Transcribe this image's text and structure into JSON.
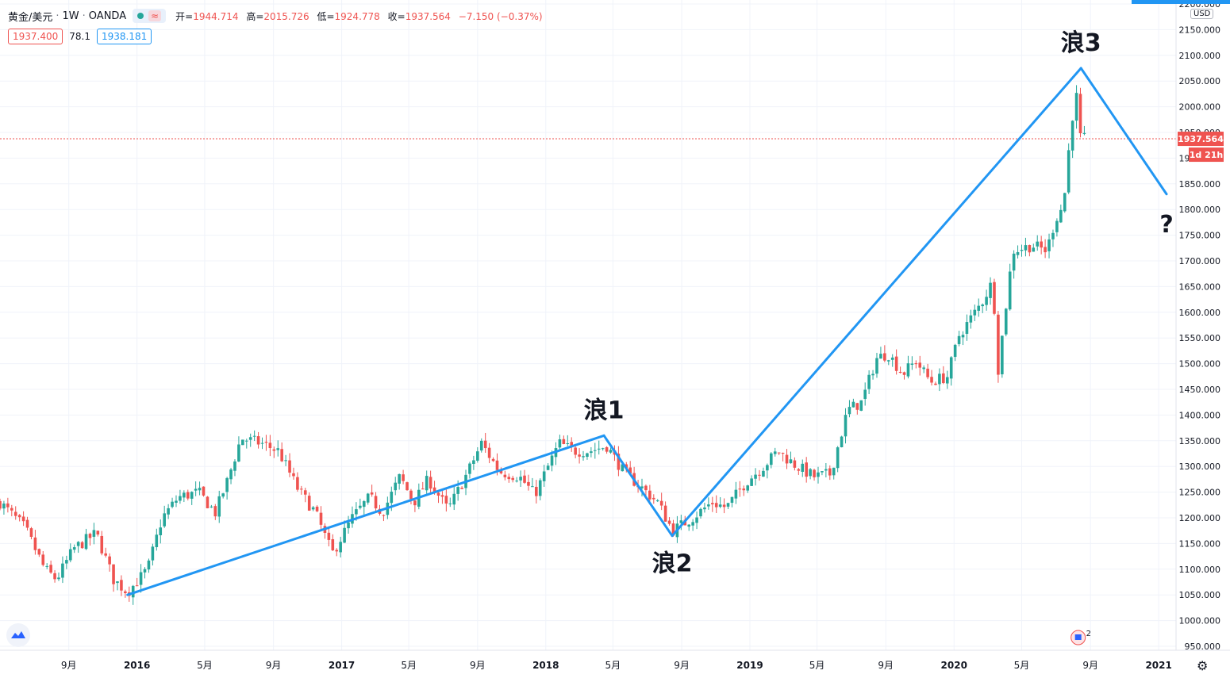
{
  "header": {
    "symbol": "黄金/美元",
    "interval": "1W",
    "exchange": "OANDA",
    "approx_icon": "≈",
    "ohlc": [
      {
        "k": "开=",
        "v": "1944.714"
      },
      {
        "k": "高=",
        "v": "2015.726"
      },
      {
        "k": "低=",
        "v": "1924.778"
      },
      {
        "k": "收=",
        "v": "1937.564"
      },
      {
        "k": "",
        "v": "−7.150 (−0.37%)"
      }
    ],
    "bid": "1937.400",
    "spread": "78.1",
    "ask": "1938.181"
  },
  "colors": {
    "up": "#26a69a",
    "down": "#ef5350",
    "wave": "#2196f3",
    "grid": "#f0f3fa",
    "price_line": "#ef5350"
  },
  "icons": {
    "logo": "tradingview-logo-icon",
    "settings": "gear-icon",
    "news": "news-flag-icon"
  },
  "price_axis": {
    "currency": "USD",
    "labels": [
      "950.000",
      "1000.000",
      "1050.000",
      "1100.000",
      "1150.000",
      "1200.000",
      "1250.000",
      "1300.000",
      "1350.000",
      "1400.000",
      "1450.000",
      "1500.000",
      "1550.000",
      "1600.000",
      "1650.000",
      "1700.000",
      "1750.000",
      "1800.000",
      "1850.000",
      "1900.000",
      "1950.000",
      "2000.000",
      "2050.000",
      "2100.000",
      "2150.000",
      "2200.000"
    ],
    "current_price": "1937.564",
    "countdown": "1d 21h"
  },
  "time_axis": {
    "labels": [
      "9月",
      "2016",
      "5月",
      "9月",
      "2017",
      "5月",
      "9月",
      "2018",
      "5月",
      "9月",
      "2019",
      "5月",
      "9月",
      "2020",
      "5月",
      "9月",
      "2021"
    ]
  },
  "news_badge": "2",
  "chart_data": {
    "type": "candlestick",
    "symbol": "黄金/美元",
    "interval": "1W",
    "y_range": [
      950,
      2200
    ],
    "x_range": [
      "2015-05",
      "2021-02"
    ],
    "current_price": 1937.564,
    "waves": [
      {
        "label": "浪1",
        "from": {
          "date": "2015-12",
          "price": 1050
        },
        "to": {
          "date": "2018-04",
          "price": 1360
        }
      },
      {
        "label": "浪2",
        "from": {
          "date": "2018-04",
          "price": 1360
        },
        "to": {
          "date": "2018-08",
          "price": 1165
        }
      },
      {
        "label": "浪3",
        "from": {
          "date": "2018-08",
          "price": 1165
        },
        "to": {
          "date": "2020-08",
          "price": 2075
        }
      },
      {
        "label": "?",
        "from": {
          "date": "2020-08",
          "price": 2075
        },
        "to": {
          "date": "2021-01",
          "price": 1830
        }
      }
    ],
    "price_path": [
      [
        "2015-05-01",
        1230
      ],
      [
        "2015-06-15",
        1180
      ],
      [
        "2015-07-20",
        1100
      ],
      [
        "2015-08-10",
        1080
      ],
      [
        "2015-09-10",
        1140
      ],
      [
        "2015-10-20",
        1170
      ],
      [
        "2015-11-20",
        1080
      ],
      [
        "2015-12-15",
        1055
      ],
      [
        "2016-01-20",
        1100
      ],
      [
        "2016-02-15",
        1200
      ],
      [
        "2016-03-15",
        1240
      ],
      [
        "2016-04-20",
        1250
      ],
      [
        "2016-05-20",
        1210
      ],
      [
        "2016-06-10",
        1270
      ],
      [
        "2016-07-05",
        1355
      ],
      [
        "2016-08-10",
        1345
      ],
      [
        "2016-09-10",
        1330
      ],
      [
        "2016-10-15",
        1255
      ],
      [
        "2016-11-15",
        1210
      ],
      [
        "2016-12-15",
        1130
      ],
      [
        "2017-01-20",
        1200
      ],
      [
        "2017-02-20",
        1240
      ],
      [
        "2017-03-15",
        1210
      ],
      [
        "2017-04-15",
        1280
      ],
      [
        "2017-05-10",
        1230
      ],
      [
        "2017-06-05",
        1275
      ],
      [
        "2017-07-10",
        1215
      ],
      [
        "2017-08-15",
        1290
      ],
      [
        "2017-09-08",
        1345
      ],
      [
        "2017-10-10",
        1290
      ],
      [
        "2017-11-15",
        1280
      ],
      [
        "2017-12-12",
        1245
      ],
      [
        "2018-01-25",
        1345
      ],
      [
        "2018-02-20",
        1330
      ],
      [
        "2018-03-20",
        1330
      ],
      [
        "2018-04-20",
        1340
      ],
      [
        "2018-05-20",
        1290
      ],
      [
        "2018-06-25",
        1255
      ],
      [
        "2018-07-20",
        1230
      ],
      [
        "2018-08-16",
        1175
      ],
      [
        "2018-09-20",
        1200
      ],
      [
        "2018-10-25",
        1230
      ],
      [
        "2018-11-20",
        1220
      ],
      [
        "2018-12-25",
        1270
      ],
      [
        "2019-01-25",
        1300
      ],
      [
        "2019-02-20",
        1330
      ],
      [
        "2019-03-20",
        1305
      ],
      [
        "2019-04-25",
        1280
      ],
      [
        "2019-05-25",
        1285
      ],
      [
        "2019-06-25",
        1410
      ],
      [
        "2019-07-20",
        1425
      ],
      [
        "2019-08-15",
        1510
      ],
      [
        "2019-09-05",
        1520
      ],
      [
        "2019-10-01",
        1480
      ],
      [
        "2019-10-25",
        1505
      ],
      [
        "2019-11-20",
        1465
      ],
      [
        "2019-12-20",
        1475
      ],
      [
        "2020-01-10",
        1555
      ],
      [
        "2020-02-20",
        1620
      ],
      [
        "2020-03-10",
        1660
      ],
      [
        "2020-03-20",
        1490
      ],
      [
        "2020-04-15",
        1720
      ],
      [
        "2020-05-20",
        1730
      ],
      [
        "2020-06-15",
        1720
      ],
      [
        "2020-06-30",
        1780
      ],
      [
        "2020-07-15",
        1810
      ],
      [
        "2020-07-28",
        1960
      ],
      [
        "2020-08-06",
        2030
      ],
      [
        "2020-08-14",
        1940
      ],
      [
        "2020-08-21",
        1937
      ]
    ]
  }
}
